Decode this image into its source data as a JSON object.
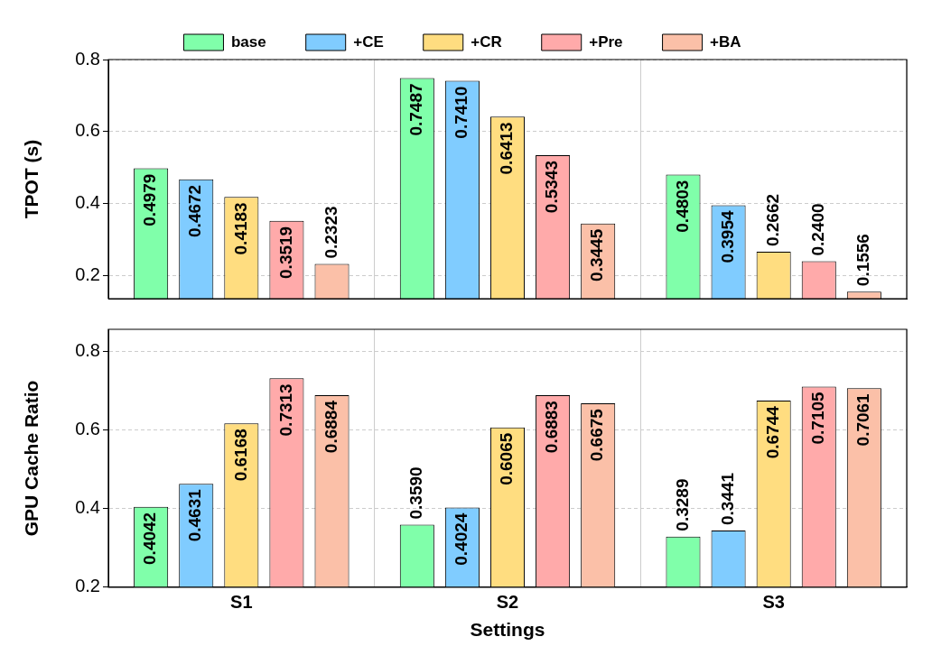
{
  "chart_data": [
    {
      "type": "bar",
      "ylabel": "TPOT (s)",
      "categories": [
        null,
        null,
        null
      ],
      "series": [
        {
          "name": "base",
          "color": "#80ffaa",
          "values": [
            0.4979,
            0.7487,
            0.4803
          ],
          "value_labels": [
            "0.4979",
            "0.7487",
            "0.4803"
          ]
        },
        {
          "name": "+CE",
          "color": "#80ccff",
          "values": [
            0.4672,
            0.741,
            0.3954
          ],
          "value_labels": [
            "0.4672",
            "0.7410",
            "0.3954"
          ]
        },
        {
          "name": "+CR",
          "color": "#ffdd80",
          "values": [
            0.4183,
            0.6413,
            0.2662
          ],
          "value_labels": [
            "0.4183",
            "0.6413",
            "0.2662"
          ]
        },
        {
          "name": "+Pre",
          "color": "#ffaaaa",
          "values": [
            0.3519,
            0.5343,
            0.24
          ],
          "value_labels": [
            "0.3519",
            "0.5343",
            "0.2400"
          ]
        },
        {
          "name": "+BA",
          "color": "#fbc0a8",
          "values": [
            0.2323,
            0.3445,
            0.1556
          ],
          "value_labels": [
            "0.2323",
            "0.3445",
            "0.1556"
          ]
        }
      ],
      "ylim": [
        0.136,
        0.8
      ],
      "yticks": [
        0.2,
        0.4,
        0.6,
        0.8
      ],
      "grid": true,
      "legend": "top",
      "tick_labels": "y"
    },
    {
      "type": "bar",
      "xlabel": "Settings",
      "ylabel": "GPU Cache Ratio",
      "categories": [
        "S1",
        "S2",
        "S3"
      ],
      "series": [
        {
          "color": "#80ffaa",
          "values": [
            0.4042,
            0.359,
            0.3289
          ],
          "value_labels": [
            "0.4042",
            "0.3590",
            "0.3289"
          ]
        },
        {
          "color": "#80ccff",
          "values": [
            0.4631,
            0.4024,
            0.3441
          ],
          "value_labels": [
            "0.4631",
            "0.4024",
            "0.3441"
          ]
        },
        {
          "color": "#ffdd80",
          "values": [
            0.6168,
            0.6065,
            0.6744
          ],
          "value_labels": [
            "0.6168",
            "0.6065",
            "0.6744"
          ]
        },
        {
          "color": "#ffaaaa",
          "values": [
            0.7313,
            0.6883,
            0.7105
          ],
          "value_labels": [
            "0.7313",
            "0.6883",
            "0.7105"
          ]
        },
        {
          "color": "#fbc0a8",
          "values": [
            0.6884,
            0.6675,
            0.7061
          ],
          "value_labels": [
            "0.6884",
            "0.6675",
            "0.7061"
          ]
        }
      ],
      "ylim": [
        0.2,
        0.856
      ],
      "yticks": [
        0.2,
        0.4,
        0.6,
        0.8
      ],
      "grid": true
    }
  ]
}
